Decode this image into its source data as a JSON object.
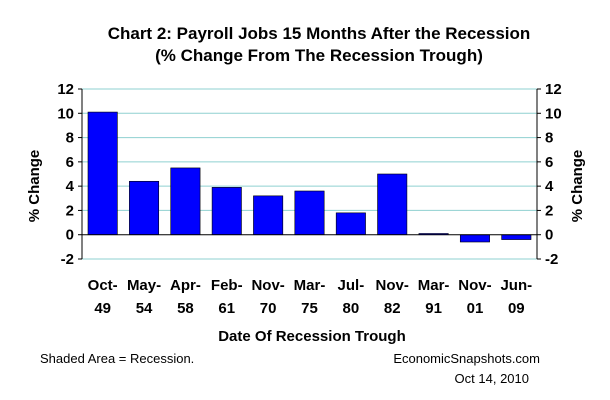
{
  "chart_data": {
    "type": "bar",
    "title": "Chart 2: Payroll Jobs 15 Months After the Recession",
    "subtitle": "(% Change From The Recession Trough)",
    "xlabel": "Date Of Recession Trough",
    "ylabel": "% Change",
    "y2label": "% Change",
    "categories": [
      [
        "Oct-",
        "49"
      ],
      [
        "May-",
        "54"
      ],
      [
        "Apr-",
        "58"
      ],
      [
        "Feb-",
        "61"
      ],
      [
        "Nov-",
        "70"
      ],
      [
        "Mar-",
        "75"
      ],
      [
        "Jul-",
        "80"
      ],
      [
        "Nov-",
        "82"
      ],
      [
        "Mar-",
        "91"
      ],
      [
        "Nov-",
        "01"
      ],
      [
        "Jun-",
        "09"
      ]
    ],
    "values": [
      10.1,
      4.4,
      5.5,
      3.9,
      3.2,
      3.6,
      1.8,
      5.0,
      0.1,
      -0.6,
      -0.4
    ],
    "ylim": [
      -2,
      12
    ],
    "yticks": [
      -2,
      0,
      2,
      4,
      6,
      8,
      10,
      12
    ],
    "grid": true,
    "bar_color": "#0000FF",
    "grid_color": "#8FD0D0",
    "footnote_left": "Shaded Area = Recession.",
    "source": "EconomicSnapshots.com",
    "date": "Oct 14, 2010"
  }
}
